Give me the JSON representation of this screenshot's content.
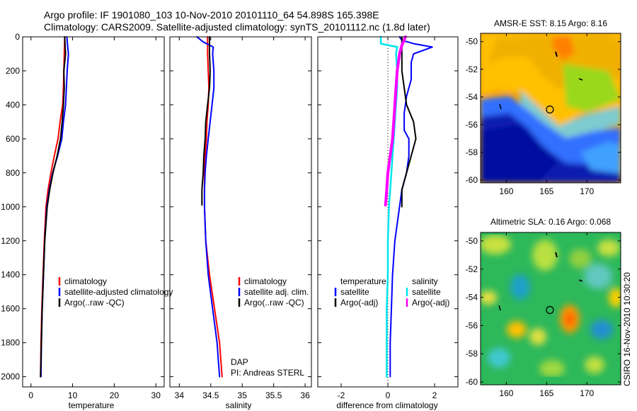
{
  "header": {
    "title_line1": "Argo profile: IF 1901080_103 10-Nov-2010 20101110_64 54.898S 165.398E",
    "title_line2": "Climatology: CARS2009. Satellite-adjusted climatology: synTS_20101112.nc (1.8d later)"
  },
  "side_note": "CSIRO 16-Nov-2010 10:30:20",
  "credit": {
    "line1": "DAP",
    "line2": "PI: Andreas STERL"
  },
  "colors": {
    "climatology": "#ff0000",
    "satellite": "#0000ff",
    "argo": "#000000",
    "satellite_diff_salinity": "#00e5ee",
    "argo_diff_salinity": "#ff00ff"
  },
  "chart_data": [
    {
      "type": "line",
      "xlabel": "temperature",
      "xticks": [
        "0",
        "10",
        "20",
        "30"
      ],
      "xlim": [
        -2,
        32
      ],
      "yticks": [
        "0",
        "200",
        "400",
        "600",
        "800",
        "1000",
        "1200",
        "1400",
        "1600",
        "1800",
        "2000"
      ],
      "ylim": [
        2060,
        0
      ],
      "legend": [
        "climatology",
        "satellite-adjusted climatology",
        "Argo(..raw -QC)"
      ],
      "series": [
        {
          "name": "climatology",
          "color": "#ff0000",
          "points": [
            [
              8.1,
              0
            ],
            [
              8.0,
              100
            ],
            [
              7.9,
              200
            ],
            [
              7.8,
              300
            ],
            [
              7.6,
              400
            ],
            [
              7.0,
              500
            ],
            [
              6.5,
              600
            ],
            [
              5.6,
              700
            ],
            [
              4.8,
              800
            ],
            [
              4.1,
              900
            ],
            [
              3.6,
              1000
            ],
            [
              3.2,
              1200
            ],
            [
              2.9,
              1400
            ],
            [
              2.6,
              1600
            ],
            [
              2.4,
              1800
            ],
            [
              2.3,
              2000
            ]
          ]
        },
        {
          "name": "satellite-adjusted climatology",
          "color": "#0000ff",
          "points": [
            [
              8.6,
              0
            ],
            [
              8.8,
              50
            ],
            [
              9.0,
              100
            ],
            [
              8.7,
              200
            ],
            [
              8.5,
              300
            ],
            [
              8.3,
              400
            ],
            [
              7.8,
              500
            ],
            [
              7.4,
              600
            ],
            [
              6.4,
              700
            ],
            [
              5.2,
              800
            ],
            [
              4.4,
              900
            ],
            [
              3.8,
              1000
            ],
            [
              3.3,
              1200
            ],
            [
              3.0,
              1400
            ],
            [
              2.7,
              1600
            ],
            [
              2.5,
              1800
            ],
            [
              2.4,
              2000
            ]
          ]
        },
        {
          "name": "Argo(..raw -QC)",
          "color": "#000000",
          "points": [
            [
              8.1,
              0
            ],
            [
              8.2,
              50
            ],
            [
              8.3,
              100
            ],
            [
              8.1,
              150
            ],
            [
              7.9,
              200
            ],
            [
              8.0,
              300
            ],
            [
              7.8,
              400
            ],
            [
              7.5,
              500
            ],
            [
              7.1,
              600
            ],
            [
              6.3,
              700
            ],
            [
              5.3,
              800
            ],
            [
              4.5,
              900
            ],
            [
              3.9,
              1000
            ],
            [
              3.3,
              1200
            ],
            [
              3.0,
              1400
            ],
            [
              2.7,
              1600
            ],
            [
              2.5,
              1800
            ],
            [
              2.3,
              2000
            ]
          ]
        }
      ]
    },
    {
      "type": "line",
      "xlabel": "salinity",
      "xticks": [
        "34",
        "34.5",
        "35",
        "35.5",
        "36"
      ],
      "xlim": [
        33.85,
        36.1
      ],
      "yticks": [],
      "ylim": [
        2060,
        0
      ],
      "legend": [
        "climatology",
        "satellite adj. clim.",
        "Argo(..raw -QC)"
      ],
      "series": [
        {
          "name": "climatology",
          "color": "#ff0000",
          "points": [
            [
              34.45,
              0
            ],
            [
              34.45,
              100
            ],
            [
              34.46,
              200
            ],
            [
              34.47,
              300
            ],
            [
              34.46,
              400
            ],
            [
              34.44,
              500
            ],
            [
              34.43,
              600
            ],
            [
              34.41,
              700
            ],
            [
              34.4,
              800
            ],
            [
              34.4,
              900
            ],
            [
              34.4,
              1000
            ],
            [
              34.42,
              1200
            ],
            [
              34.48,
              1400
            ],
            [
              34.56,
              1600
            ],
            [
              34.64,
              1800
            ],
            [
              34.68,
              2000
            ]
          ]
        },
        {
          "name": "satellite adj. clim.",
          "color": "#0000ff",
          "points": [
            [
              34.28,
              0
            ],
            [
              34.38,
              30
            ],
            [
              34.54,
              60
            ],
            [
              34.53,
              100
            ],
            [
              34.55,
              200
            ],
            [
              34.55,
              300
            ],
            [
              34.52,
              400
            ],
            [
              34.49,
              500
            ],
            [
              34.46,
              600
            ],
            [
              34.43,
              700
            ],
            [
              34.41,
              800
            ],
            [
              34.4,
              900
            ],
            [
              34.4,
              1000
            ],
            [
              34.42,
              1200
            ],
            [
              34.46,
              1400
            ],
            [
              34.53,
              1600
            ],
            [
              34.6,
              1800
            ],
            [
              34.64,
              2000
            ]
          ]
        },
        {
          "name": "Argo(..raw -QC)",
          "color": "#000000",
          "points": [
            [
              34.48,
              0
            ],
            [
              34.48,
              100
            ],
            [
              34.49,
              200
            ],
            [
              34.48,
              300
            ],
            [
              34.45,
              400
            ],
            [
              34.42,
              500
            ],
            [
              34.41,
              600
            ],
            [
              34.39,
              700
            ],
            [
              34.38,
              800
            ],
            [
              34.36,
              900
            ],
            [
              34.36,
              990
            ]
          ]
        }
      ]
    },
    {
      "type": "line",
      "xlabel": "difference from climatology",
      "xticks": [
        "-2",
        "0",
        "2"
      ],
      "xlim": [
        -3.0,
        3.0
      ],
      "yticks": [],
      "ylim": [
        2060,
        0
      ],
      "legend": [
        "temperature",
        "satellite",
        "Argo(-adj)",
        "salinity",
        "satellite",
        "Argo(-adj)"
      ],
      "series": [
        {
          "name": "temperature satellite",
          "color": "#0000ff",
          "points": [
            [
              0.5,
              0
            ],
            [
              0.6,
              20
            ],
            [
              1.1,
              40
            ],
            [
              1.9,
              60
            ],
            [
              1.1,
              100
            ],
            [
              1.0,
              150
            ],
            [
              1.0,
              250
            ],
            [
              0.8,
              350
            ],
            [
              0.7,
              450
            ],
            [
              0.7,
              550
            ],
            [
              0.9,
              600
            ],
            [
              0.9,
              700
            ],
            [
              0.8,
              800
            ],
            [
              0.6,
              900
            ],
            [
              0.5,
              1000
            ],
            [
              0.3,
              1200
            ],
            [
              0.2,
              1400
            ],
            [
              0.15,
              1600
            ],
            [
              0.1,
              1800
            ],
            [
              0.1,
              2000
            ]
          ]
        },
        {
          "name": "temperature Argo(-adj)",
          "color": "#000000",
          "points": [
            [
              0.6,
              0
            ],
            [
              0.6,
              100
            ],
            [
              0.6,
              200
            ],
            [
              0.7,
              300
            ],
            [
              0.8,
              400
            ],
            [
              1.1,
              500
            ],
            [
              1.2,
              600
            ],
            [
              1.0,
              700
            ],
            [
              0.8,
              800
            ],
            [
              0.6,
              900
            ],
            [
              0.6,
              1000
            ]
          ]
        },
        {
          "name": "salinity satellite",
          "color": "#00e5ee",
          "points": [
            [
              -0.3,
              0
            ],
            [
              -0.3,
              40
            ],
            [
              0.4,
              60
            ],
            [
              0.35,
              100
            ],
            [
              0.4,
              200
            ],
            [
              0.4,
              300
            ],
            [
              0.35,
              400
            ],
            [
              0.3,
              500
            ],
            [
              0.25,
              600
            ],
            [
              0.2,
              700
            ],
            [
              0.15,
              800
            ],
            [
              0.1,
              900
            ],
            [
              0.05,
              1000
            ],
            [
              0.0,
              1200
            ],
            [
              0.0,
              1400
            ],
            [
              -0.05,
              1600
            ],
            [
              -0.05,
              1800
            ],
            [
              -0.05,
              2000
            ]
          ]
        },
        {
          "name": "salinity Argo(-adj)",
          "color": "#ff00ff",
          "points": [
            [
              0.75,
              0
            ],
            [
              0.6,
              50
            ],
            [
              0.5,
              100
            ],
            [
              0.4,
              200
            ],
            [
              0.35,
              300
            ],
            [
              0.3,
              400
            ],
            [
              0.25,
              500
            ],
            [
              0.2,
              600
            ],
            [
              0.1,
              700
            ],
            [
              0.0,
              800
            ],
            [
              -0.05,
              900
            ],
            [
              -0.1,
              990
            ]
          ]
        }
      ]
    },
    {
      "type": "heatmap",
      "title": "AMSR-E SST: 8.15 Argo: 8.16",
      "xticks": [
        "160",
        "165",
        "170"
      ],
      "yticks": [
        "-50",
        "-52",
        "-54",
        "-56",
        "-58",
        "-60"
      ],
      "xlim": [
        156.8,
        174.2
      ],
      "ylim": [
        -60.2,
        -49.4
      ],
      "argo_position": [
        165.4,
        -54.9
      ]
    },
    {
      "type": "heatmap",
      "title": "Altimetric SLA: 0.16 Argo: 0.068",
      "xticks": [
        "160",
        "165",
        "170"
      ],
      "yticks": [
        "-50",
        "-52",
        "-54",
        "-56",
        "-58",
        "-60"
      ],
      "xlim": [
        156.8,
        174.2
      ],
      "ylim": [
        -60.2,
        -49.4
      ],
      "argo_position": [
        165.4,
        -54.9
      ]
    }
  ]
}
